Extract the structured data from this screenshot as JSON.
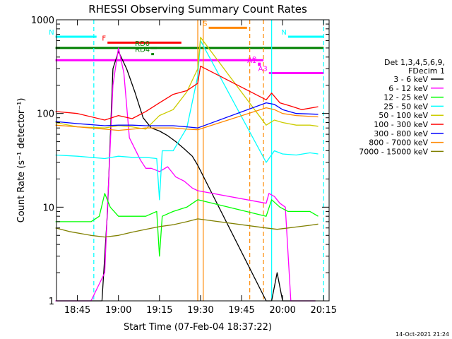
{
  "chart_data": {
    "type": "line",
    "title": "RHESSI Observing Summary Count Rates",
    "xlabel": "Start Time (07-Feb-04 18:37:22)",
    "ylabel": "Count Rate (s⁻¹ detector⁻¹)",
    "y_scale": "log",
    "ylim": [
      1,
      1000
    ],
    "xlim": [
      "18:37:22",
      "20:17:00"
    ],
    "x_ticks": [
      "18:45",
      "19:00",
      "19:15",
      "19:30",
      "19:45",
      "20:00",
      "20:15"
    ],
    "y_ticks": [
      "1",
      "10",
      "100",
      "1000"
    ],
    "legend_header": [
      "Det 1,3,4,5,6,9,",
      "FDecim 1"
    ],
    "legend_position": "right",
    "footer_date": "14-Oct-2021 21:24",
    "series": [
      {
        "name": "3 - 6 keV",
        "color": "#000000",
        "x": [
          "18:37",
          "18:50",
          "18:54",
          "18:56",
          "18:58",
          "19:00",
          "19:03",
          "19:06",
          "19:09",
          "19:12",
          "19:15",
          "19:18",
          "19:21",
          "19:24",
          "19:27",
          "19:29",
          "19:54",
          "19:56",
          "19:58",
          "20:00",
          "20:02",
          "20:05",
          "20:08",
          "20:12"
        ],
        "values": [
          1,
          1,
          1,
          9,
          300,
          460,
          300,
          170,
          90,
          70,
          65,
          58,
          50,
          42,
          35,
          28,
          1,
          1,
          2,
          1,
          1,
          1,
          1,
          1
        ]
      },
      {
        "name": "6 - 12 keV",
        "color": "#ff00ff",
        "x": [
          "18:37",
          "18:50",
          "18:55",
          "18:56",
          "18:58",
          "19:00",
          "19:02",
          "19:04",
          "19:06",
          "19:08",
          "19:10",
          "19:12",
          "19:15",
          "19:18",
          "19:21",
          "19:24",
          "19:27",
          "19:29",
          "19:54",
          "19:55",
          "19:57",
          "19:59",
          "20:01",
          "20:03",
          "20:06",
          "20:09",
          "20:12"
        ],
        "values": [
          1,
          1,
          2,
          10,
          200,
          500,
          270,
          55,
          42,
          32,
          26,
          26,
          24,
          27,
          21,
          19,
          16,
          15,
          11,
          14,
          13,
          11,
          10,
          1,
          1,
          1,
          1
        ]
      },
      {
        "name": "12 - 25 keV",
        "color": "#00ff00",
        "x": [
          "18:37",
          "18:42",
          "18:50",
          "18:53",
          "18:55",
          "18:57",
          "19:00",
          "19:05",
          "19:10",
          "19:14",
          "19:15",
          "19:16",
          "19:20",
          "19:25",
          "19:29",
          "19:54",
          "19:56",
          "19:59",
          "20:02",
          "20:06",
          "20:10",
          "20:13"
        ],
        "values": [
          7,
          7,
          7,
          8,
          14,
          10,
          8,
          8,
          8,
          9,
          3,
          8,
          9,
          10,
          12,
          8,
          12,
          10,
          9,
          9,
          9,
          8
        ]
      },
      {
        "name": "25 - 50 keV",
        "color": "#00ffff",
        "x": [
          "18:37",
          "18:45",
          "18:50",
          "18:55",
          "19:00",
          "19:05",
          "19:10",
          "19:14",
          "19:15",
          "19:16",
          "19:20",
          "19:25",
          "19:29",
          "19:30",
          "19:54",
          "19:57",
          "20:00",
          "20:05",
          "20:10",
          "20:13"
        ],
        "values": [
          36,
          35,
          34,
          33,
          35,
          34,
          34,
          33,
          12,
          40,
          40,
          70,
          250,
          600,
          30,
          40,
          37,
          36,
          38,
          37
        ]
      },
      {
        "name": "50 - 100 keV",
        "color": "#cccc00",
        "x": [
          "18:37",
          "18:45",
          "18:55",
          "19:00",
          "19:05",
          "19:10",
          "19:15",
          "19:20",
          "19:25",
          "19:29",
          "19:30",
          "19:54",
          "19:57",
          "20:00",
          "20:05",
          "20:10",
          "20:13"
        ],
        "values": [
          80,
          72,
          70,
          74,
          72,
          68,
          95,
          110,
          170,
          300,
          650,
          75,
          85,
          80,
          75,
          75,
          73
        ]
      },
      {
        "name": "100 - 300 keV",
        "color": "#ff0000",
        "x": [
          "18:37",
          "18:45",
          "18:55",
          "19:00",
          "19:05",
          "19:10",
          "19:15",
          "19:20",
          "19:25",
          "19:29",
          "19:30",
          "19:54",
          "19:56",
          "19:59",
          "20:03",
          "20:07",
          "20:13"
        ],
        "values": [
          105,
          100,
          85,
          95,
          88,
          105,
          130,
          160,
          175,
          210,
          320,
          140,
          165,
          130,
          120,
          110,
          118
        ]
      },
      {
        "name": "300 - 800 keV",
        "color": "#0000ff",
        "x": [
          "18:37",
          "18:45",
          "18:55",
          "19:00",
          "19:05",
          "19:10",
          "19:15",
          "19:20",
          "19:25",
          "19:29",
          "19:54",
          "19:57",
          "20:00",
          "20:05",
          "20:13"
        ],
        "values": [
          82,
          78,
          74,
          75,
          75,
          74,
          74,
          74,
          72,
          70,
          130,
          125,
          110,
          100,
          98
        ]
      },
      {
        "name": "800 - 7000 keV",
        "color": "#ff8800",
        "x": [
          "18:37",
          "18:45",
          "18:55",
          "19:00",
          "19:05",
          "19:10",
          "19:15",
          "19:20",
          "19:25",
          "19:29",
          "19:54",
          "19:57",
          "20:00",
          "20:05",
          "20:13"
        ],
        "values": [
          75,
          72,
          68,
          66,
          68,
          70,
          70,
          70,
          68,
          67,
          115,
          110,
          100,
          95,
          92
        ]
      },
      {
        "name": "7000 - 15000 keV",
        "color": "#808000",
        "x": [
          "18:37",
          "18:42",
          "18:50",
          "18:55",
          "19:00",
          "19:05",
          "19:10",
          "19:15",
          "19:20",
          "19:25",
          "19:29",
          "19:54",
          "19:58",
          "20:02",
          "20:06",
          "20:10",
          "20:13"
        ],
        "values": [
          6,
          5.5,
          5,
          4.8,
          5,
          5.4,
          5.8,
          6.2,
          6.5,
          7,
          7.5,
          6,
          5.8,
          6,
          6.2,
          6.4,
          6.6
        ]
      }
    ],
    "flag_bars": [
      {
        "label": "N",
        "color": "#00ffff",
        "y": 660,
        "start": "18:37",
        "end": "18:52"
      },
      {
        "label": "N",
        "color": "#00ffff",
        "y": 660,
        "start": "20:02",
        "end": "20:15"
      },
      {
        "label": "F",
        "color": "#ff0000",
        "y": 570,
        "start": "18:56",
        "end": "19:23"
      },
      {
        "label": "S",
        "color": "#ff8800",
        "y": 820,
        "start": "19:33",
        "end": "19:47"
      },
      {
        "label": "",
        "color": "#008000",
        "y": 500,
        "start": "18:37",
        "end": "20:15"
      },
      {
        "label": "RD0",
        "color": "#008000",
        "y": 500,
        "start": "19:12",
        "end": "19:14"
      },
      {
        "label": "RD4",
        "color": "#008000",
        "y": 430,
        "start": "19:12",
        "end": "19:13"
      },
      {
        "label": "",
        "color": "#ff00ff",
        "y": 370,
        "start": "18:37",
        "end": "19:53"
      },
      {
        "label": "A0",
        "color": "#ff00ff",
        "y": 340,
        "start": "19:51",
        "end": "19:52"
      },
      {
        "label": "A1",
        "color": "#ff00ff",
        "y": 330,
        "start": "19:51",
        "end": "19:52"
      },
      {
        "label": "A3",
        "color": "#ff00ff",
        "y": 270,
        "start": "19:55",
        "end": "20:15"
      }
    ],
    "vertical_lines": [
      {
        "time": "18:51",
        "color": "#00ffff",
        "style": "dashed"
      },
      {
        "time": "19:29",
        "color": "#ff8800",
        "style": "solid"
      },
      {
        "time": "19:31",
        "color": "#ff8800",
        "style": "solid"
      },
      {
        "time": "19:48",
        "color": "#ff8800",
        "style": "dashed"
      },
      {
        "time": "19:53",
        "color": "#ff8800",
        "style": "dashed"
      },
      {
        "time": "19:56",
        "color": "#00ffff",
        "style": "solid"
      },
      {
        "time": "20:15",
        "color": "#00ffff",
        "style": "dashed"
      }
    ]
  }
}
